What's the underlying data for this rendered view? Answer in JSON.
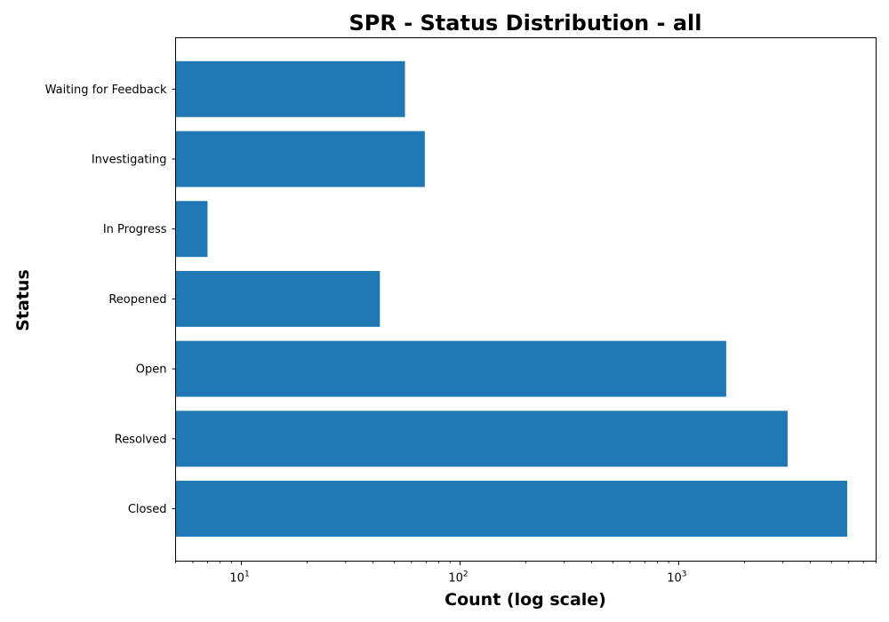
{
  "chart_data": {
    "type": "bar",
    "orientation": "horizontal",
    "title": "SPR - Status Distribution - all",
    "xlabel": "Count (log scale)",
    "ylabel": "Status",
    "x_scale": "log",
    "xlim": [
      5,
      8000
    ],
    "x_major_ticks": [
      {
        "value": 10,
        "base": "10",
        "exp": "1"
      },
      {
        "value": 100,
        "base": "10",
        "exp": "2"
      },
      {
        "value": 1000,
        "base": "10",
        "exp": "3"
      }
    ],
    "categories": [
      "Closed",
      "Resolved",
      "Open",
      "Reopened",
      "In Progress",
      "Investigating",
      "Waiting for Feedback"
    ],
    "values": [
      5900,
      3150,
      1650,
      43,
      7,
      69,
      56
    ],
    "bar_color": "#1f77b4",
    "grid": false
  }
}
